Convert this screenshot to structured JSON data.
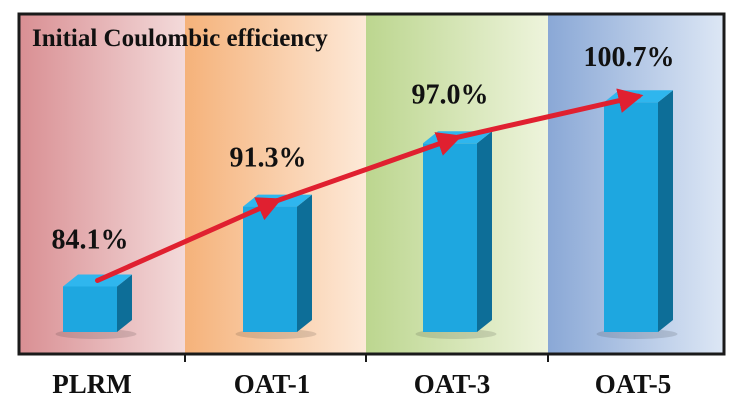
{
  "chart_data": {
    "type": "bar",
    "title": "Initial Coulombic efficiency",
    "categories": [
      "PLRM",
      "OAT-1",
      "OAT-3",
      "OAT-5"
    ],
    "values": [
      84.1,
      91.3,
      97.0,
      100.7
    ],
    "value_labels": [
      "84.1%",
      "91.3%",
      "97.0%",
      "100.7%"
    ],
    "trend_line": true,
    "xlabel": "",
    "ylabel": "",
    "grid": false,
    "colors": {
      "bar_front": "#1ea7e0",
      "bar_side": "#0d6e98",
      "bar_top": "#2fb6ee",
      "trend": "#e02030",
      "panel_bands": [
        "#e0a8a8",
        "#f7c79a",
        "#cfe0a8",
        "#9fb8dc"
      ]
    }
  }
}
